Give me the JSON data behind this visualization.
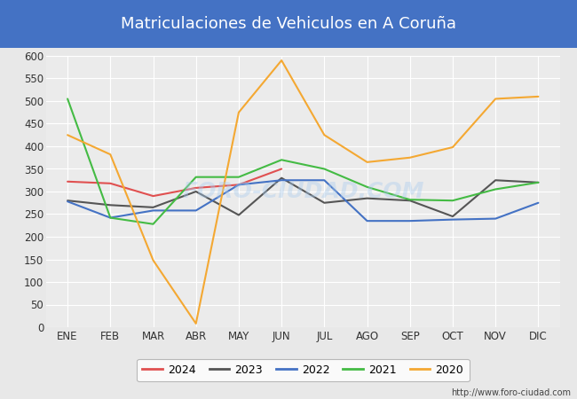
{
  "title": "Matriculaciones de Vehiculos en A Coruña",
  "title_bg_color": "#4472C4",
  "title_text_color": "#ffffff",
  "months": [
    "ENE",
    "FEB",
    "MAR",
    "ABR",
    "MAY",
    "JUN",
    "JUL",
    "AGO",
    "SEP",
    "OCT",
    "NOV",
    "DIC"
  ],
  "series": {
    "2024": {
      "color": "#e05050",
      "data": [
        322,
        318,
        290,
        308,
        315,
        350,
        null,
        null,
        null,
        null,
        null,
        null
      ]
    },
    "2023": {
      "color": "#555555",
      "data": [
        280,
        270,
        265,
        300,
        248,
        330,
        275,
        285,
        280,
        245,
        325,
        320
      ]
    },
    "2022": {
      "color": "#4472C4",
      "data": [
        278,
        242,
        258,
        258,
        315,
        325,
        325,
        235,
        235,
        238,
        240,
        275
      ]
    },
    "2021": {
      "color": "#44bb44",
      "data": [
        505,
        242,
        228,
        332,
        332,
        370,
        350,
        310,
        282,
        280,
        305,
        320
      ]
    },
    "2020": {
      "color": "#f4a832",
      "data": [
        425,
        382,
        148,
        8,
        475,
        590,
        425,
        365,
        375,
        398,
        505,
        510
      ]
    }
  },
  "ylim": [
    0,
    600
  ],
  "yticks": [
    0,
    50,
    100,
    150,
    200,
    250,
    300,
    350,
    400,
    450,
    500,
    550,
    600
  ],
  "bg_color": "#e8e8e8",
  "plot_bg_color": "#ebebeb",
  "grid_color": "#ffffff",
  "watermark": "FORO-CIUDAD.COM",
  "url": "http://www.foro-ciudad.com",
  "legend_labels": [
    "2024",
    "2023",
    "2022",
    "2021",
    "2020"
  ]
}
